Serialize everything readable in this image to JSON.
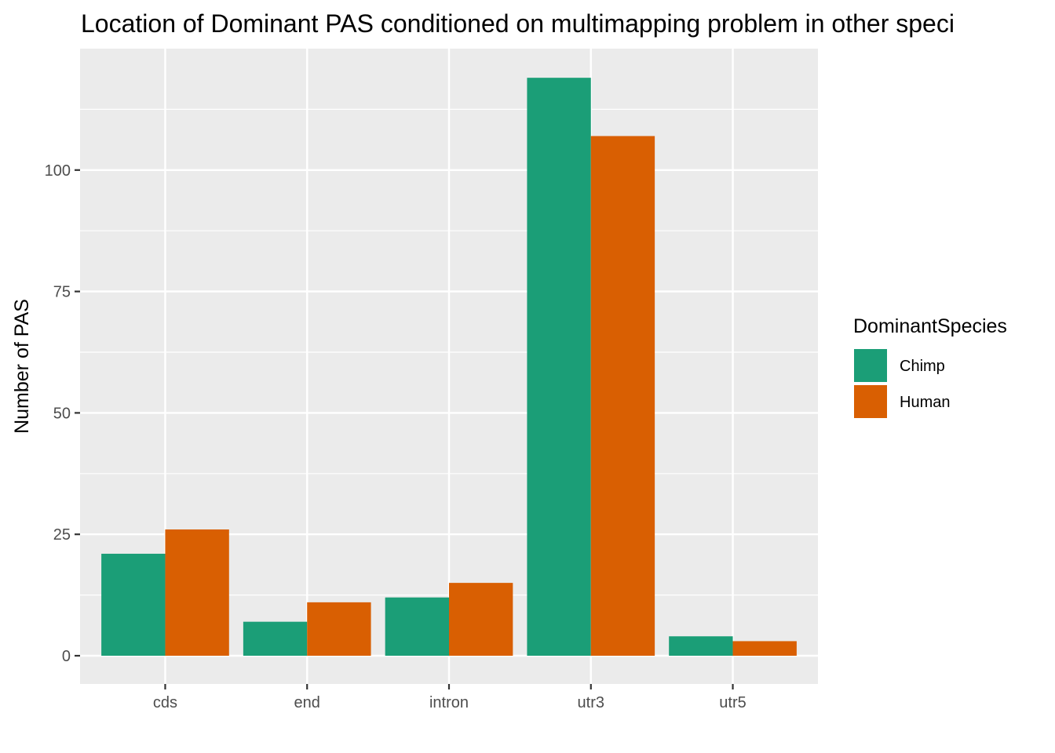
{
  "chart_data": {
    "type": "bar",
    "title": "Location of Dominant PAS conditioned on multimapping problem in other speci",
    "xlabel": "",
    "ylabel": "Number of PAS",
    "categories": [
      "cds",
      "end",
      "intron",
      "utr3",
      "utr5"
    ],
    "series": [
      {
        "name": "Chimp",
        "color": "#1b9e77",
        "values": [
          21,
          7,
          12,
          119,
          4
        ]
      },
      {
        "name": "Human",
        "color": "#d95f02",
        "values": [
          26,
          11,
          15,
          107,
          3
        ]
      }
    ],
    "ylim": [
      -6,
      125
    ],
    "yticks": [
      0,
      25,
      50,
      75,
      100
    ],
    "grid": true,
    "panel_background": "#ebebeb",
    "grid_color": "#ffffff",
    "legend": {
      "title": "DominantSpecies",
      "position": "right"
    }
  }
}
